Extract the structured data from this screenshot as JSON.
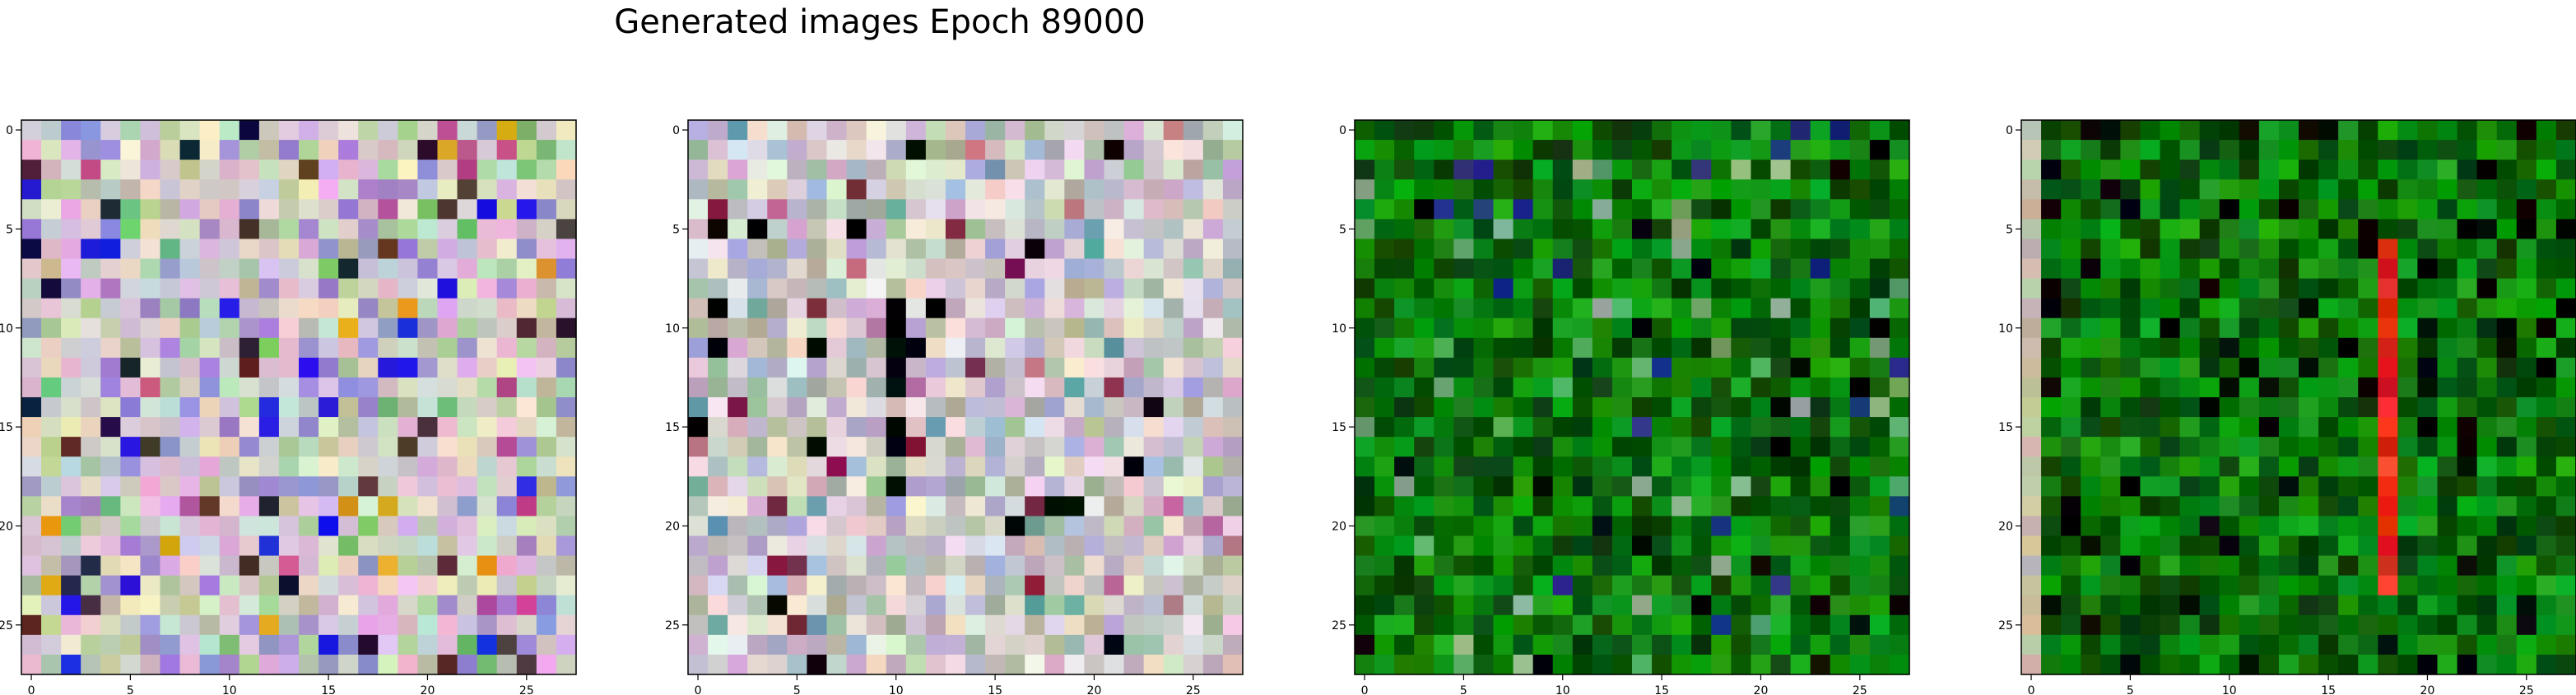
{
  "figure": {
    "title": "Generated images Epoch 89000"
  },
  "chart_data": [
    {
      "type": "heatmap",
      "title": "",
      "xlabel": "",
      "ylabel": "",
      "image_shape": [
        28,
        28
      ],
      "xlim": [
        -0.5,
        27.5
      ],
      "ylim": [
        27.5,
        -0.5
      ],
      "x_ticks": [
        0,
        5,
        10,
        15,
        20,
        25
      ],
      "y_ticks": [
        0,
        5,
        10,
        15,
        20,
        25
      ],
      "dominant_palette": "multicolor pastel noise (pinks, lavenders, light greens, greys)",
      "colors": [
        "#d8c4d0",
        "#c9d6cf",
        "#e0b8e0",
        "#b8c8a0",
        "#9a8ad0",
        "#e8e0c8",
        "#70c070",
        "#c04890",
        "#1a1a3a",
        "#e0a020",
        "#2020e0",
        "#503030"
      ]
    },
    {
      "type": "heatmap",
      "title": "",
      "xlabel": "",
      "ylabel": "",
      "image_shape": [
        28,
        28
      ],
      "xlim": [
        -0.5,
        27.5
      ],
      "ylim": [
        27.5,
        -0.5
      ],
      "x_ticks": [
        0,
        5,
        10,
        15,
        20,
        25
      ],
      "y_ticks": [
        0,
        5,
        10,
        15,
        20,
        25
      ],
      "dominant_palette": "pastel noise (light grey, beige, pink, lavender) with dark vertical streak",
      "colors": [
        "#d0ccc4",
        "#e4dcd4",
        "#c8b4c8",
        "#a8b8a0",
        "#b0b0d0",
        "#e8e4e0",
        "#c07090",
        "#802040",
        "#000000",
        "#60a0a0"
      ]
    },
    {
      "type": "heatmap",
      "title": "",
      "xlabel": "",
      "ylabel": "",
      "image_shape": [
        28,
        28
      ],
      "xlim": [
        -0.5,
        27.5
      ],
      "ylim": [
        27.5,
        -0.5
      ],
      "x_ticks": [
        0,
        5,
        10,
        15,
        20,
        25
      ],
      "y_ticks": [
        0,
        5,
        10,
        15,
        20,
        25
      ],
      "dominant_palette": "green noise with dark and blue pixels",
      "colors": [
        "#0a7a0a",
        "#0e900e",
        "#065806",
        "#18a018",
        "#044404",
        "#60a860",
        "#000000",
        "#203080",
        "#90b090"
      ]
    },
    {
      "type": "heatmap",
      "title": "",
      "xlabel": "",
      "ylabel": "",
      "image_shape": [
        28,
        28
      ],
      "xlim": [
        -0.5,
        27.5
      ],
      "ylim": [
        27.5,
        -0.5
      ],
      "x_ticks": [
        0,
        5,
        10,
        15,
        20,
        25
      ],
      "y_ticks": [
        0,
        5,
        10,
        15,
        20,
        25
      ],
      "dominant_palette": "green noise with red vertical stripe near column 18 and pale left edge",
      "colors": [
        "#0a7a0a",
        "#0e900e",
        "#065806",
        "#18a018",
        "#044404",
        "#e02010",
        "#f04030",
        "#c8c0a8",
        "#000000"
      ]
    }
  ]
}
